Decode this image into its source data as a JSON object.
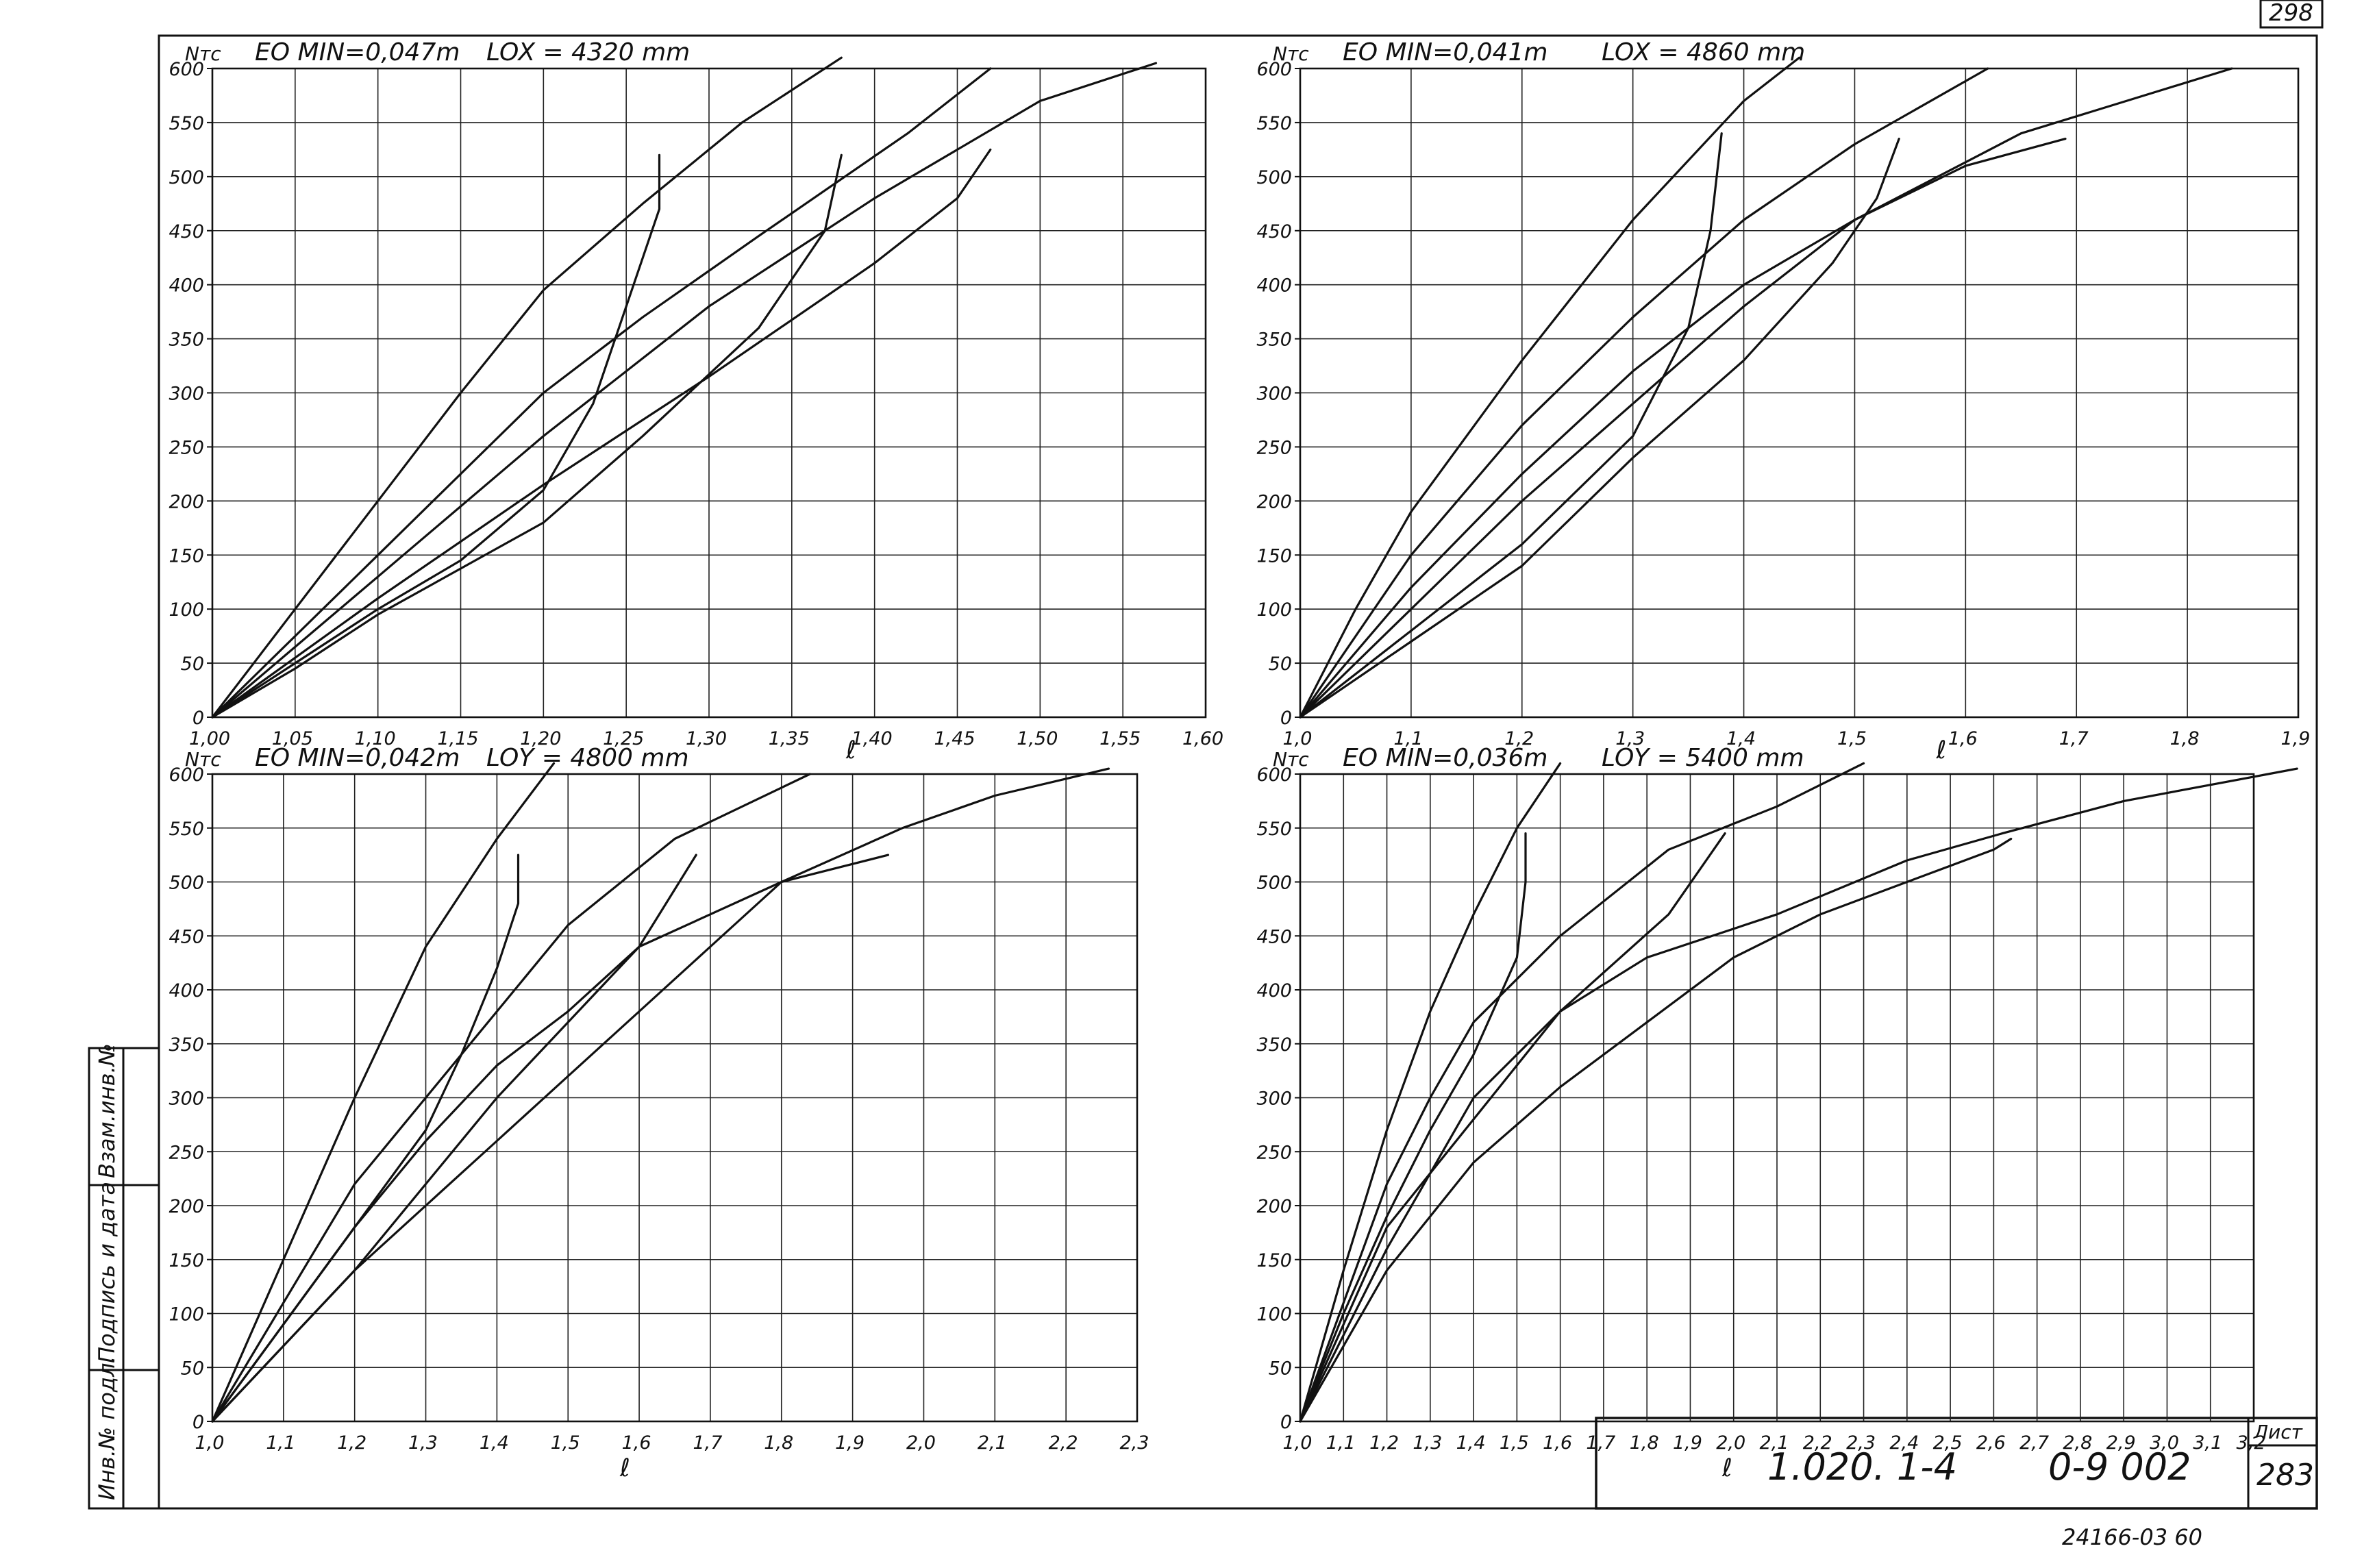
{
  "sheet": {
    "corner_number": "298",
    "stamp_label": "Лист",
    "sheet_no": "283",
    "doc_code_left": "1.020. 1-4",
    "doc_code_right": "0-9 002",
    "under_note": "24166-03  60",
    "side_labels": [
      "Инв.№ подл.",
      "Подпись и дата",
      "Взам.инв.№"
    ]
  },
  "chart_data": [
    {
      "type": "line",
      "ylabel": "Nтс",
      "xlabel": "ℓ",
      "eo_label": "EO MIN=0,047m",
      "l_label": "LOX = 4320 mm",
      "xlim": [
        1.0,
        1.6
      ],
      "ylim": [
        0,
        600
      ],
      "x_ticks": [
        "1,00",
        "1,05",
        "1,10",
        "1,15",
        "1,20",
        "1,25",
        "1,30",
        "1,35",
        "1,40",
        "1,45",
        "1,50",
        "1,55",
        "1,60"
      ],
      "y_ticks": [
        "0",
        "50",
        "100",
        "150",
        "200",
        "250",
        "300",
        "350",
        "400",
        "450",
        "500",
        "550",
        "600"
      ],
      "series": [
        {
          "points": [
            [
              1.0,
              0
            ],
            [
              1.05,
              100
            ],
            [
              1.1,
              200
            ],
            [
              1.15,
              300
            ],
            [
              1.2,
              395
            ],
            [
              1.26,
              475
            ],
            [
              1.32,
              550
            ],
            [
              1.38,
              610
            ]
          ]
        },
        {
          "points": [
            [
              1.0,
              0
            ],
            [
              1.05,
              75
            ],
            [
              1.1,
              150
            ],
            [
              1.15,
              225
            ],
            [
              1.2,
              300
            ],
            [
              1.26,
              370
            ],
            [
              1.33,
              445
            ],
            [
              1.42,
              540
            ],
            [
              1.47,
              600
            ]
          ]
        },
        {
          "points": [
            [
              1.0,
              0
            ],
            [
              1.05,
              65
            ],
            [
              1.1,
              130
            ],
            [
              1.2,
              260
            ],
            [
              1.3,
              380
            ],
            [
              1.4,
              480
            ],
            [
              1.5,
              570
            ],
            [
              1.57,
              605
            ]
          ]
        },
        {
          "points": [
            [
              1.0,
              0
            ],
            [
              1.05,
              55
            ],
            [
              1.1,
              110
            ],
            [
              1.2,
              215
            ],
            [
              1.3,
              315
            ],
            [
              1.4,
              420
            ],
            [
              1.45,
              480
            ],
            [
              1.47,
              525
            ]
          ]
        },
        {
          "points": [
            [
              1.0,
              0
            ],
            [
              1.05,
              50
            ],
            [
              1.1,
              100
            ],
            [
              1.15,
              145
            ],
            [
              1.2,
              210
            ],
            [
              1.23,
              290
            ],
            [
              1.25,
              380
            ],
            [
              1.27,
              470
            ],
            [
              1.27,
              520
            ]
          ]
        },
        {
          "points": [
            [
              1.0,
              0
            ],
            [
              1.05,
              45
            ],
            [
              1.1,
              95
            ],
            [
              1.2,
              180
            ],
            [
              1.26,
              260
            ],
            [
              1.33,
              360
            ],
            [
              1.37,
              450
            ],
            [
              1.38,
              520
            ]
          ]
        }
      ]
    },
    {
      "type": "line",
      "ylabel": "Nтс",
      "xlabel": "ℓ",
      "eo_label": "EO MIN=0,041m",
      "l_label": "LOX = 4860 mm",
      "xlim": [
        1.0,
        1.9
      ],
      "ylim": [
        0,
        600
      ],
      "x_ticks": [
        "1,0",
        "1,1",
        "1,2",
        "1,3",
        "1,4",
        "1,5",
        "1,6",
        "1,7",
        "1,8",
        "1,9"
      ],
      "y_ticks": [
        "0",
        "50",
        "100",
        "150",
        "200",
        "250",
        "300",
        "350",
        "400",
        "450",
        "500",
        "550",
        "600"
      ],
      "series": [
        {
          "points": [
            [
              1.0,
              0
            ],
            [
              1.05,
              100
            ],
            [
              1.1,
              190
            ],
            [
              1.2,
              330
            ],
            [
              1.3,
              460
            ],
            [
              1.4,
              570
            ],
            [
              1.45,
              610
            ]
          ]
        },
        {
          "points": [
            [
              1.0,
              0
            ],
            [
              1.1,
              150
            ],
            [
              1.2,
              270
            ],
            [
              1.3,
              370
            ],
            [
              1.4,
              460
            ],
            [
              1.5,
              530
            ],
            [
              1.62,
              600
            ]
          ]
        },
        {
          "points": [
            [
              1.0,
              0
            ],
            [
              1.1,
              120
            ],
            [
              1.2,
              225
            ],
            [
              1.3,
              320
            ],
            [
              1.4,
              400
            ],
            [
              1.5,
              460
            ],
            [
              1.65,
              540
            ],
            [
              1.84,
              600
            ]
          ]
        },
        {
          "points": [
            [
              1.0,
              0
            ],
            [
              1.1,
              100
            ],
            [
              1.2,
              200
            ],
            [
              1.3,
              290
            ],
            [
              1.4,
              380
            ],
            [
              1.5,
              460
            ],
            [
              1.6,
              510
            ],
            [
              1.69,
              535
            ]
          ]
        },
        {
          "points": [
            [
              1.0,
              0
            ],
            [
              1.1,
              80
            ],
            [
              1.2,
              160
            ],
            [
              1.3,
              260
            ],
            [
              1.35,
              360
            ],
            [
              1.37,
              450
            ],
            [
              1.38,
              540
            ]
          ]
        },
        {
          "points": [
            [
              1.0,
              0
            ],
            [
              1.1,
              70
            ],
            [
              1.2,
              140
            ],
            [
              1.3,
              240
            ],
            [
              1.4,
              330
            ],
            [
              1.48,
              420
            ],
            [
              1.52,
              480
            ],
            [
              1.54,
              535
            ]
          ]
        }
      ]
    },
    {
      "type": "line",
      "ylabel": "Nтс",
      "xlabel": "ℓ",
      "eo_label": "EO MIN=0,042m",
      "l_label": "LOY = 4800 mm",
      "xlim": [
        1.0,
        2.3
      ],
      "ylim": [
        0,
        600
      ],
      "x_ticks": [
        "1,0",
        "1,1",
        "1,2",
        "1,3",
        "1,4",
        "1,5",
        "1,6",
        "1,7",
        "1,8",
        "1,9",
        "2,0",
        "2,1",
        "2,2",
        "2,3"
      ],
      "y_ticks": [
        "0",
        "50",
        "100",
        "150",
        "200",
        "250",
        "300",
        "350",
        "400",
        "450",
        "500",
        "550",
        "600"
      ],
      "series": [
        {
          "points": [
            [
              1.0,
              0
            ],
            [
              1.1,
              150
            ],
            [
              1.2,
              300
            ],
            [
              1.3,
              440
            ],
            [
              1.4,
              540
            ],
            [
              1.48,
              610
            ]
          ]
        },
        {
          "points": [
            [
              1.0,
              0
            ],
            [
              1.1,
              110
            ],
            [
              1.2,
              220
            ],
            [
              1.3,
              300
            ],
            [
              1.4,
              380
            ],
            [
              1.5,
              460
            ],
            [
              1.65,
              540
            ],
            [
              1.84,
              600
            ]
          ]
        },
        {
          "points": [
            [
              1.0,
              0
            ],
            [
              1.1,
              90
            ],
            [
              1.2,
              180
            ],
            [
              1.3,
              260
            ],
            [
              1.4,
              330
            ],
            [
              1.5,
              380
            ],
            [
              1.6,
              440
            ],
            [
              1.8,
              500
            ],
            [
              1.97,
              550
            ],
            [
              2.1,
              580
            ],
            [
              2.26,
              605
            ]
          ]
        },
        {
          "points": [
            [
              1.0,
              0
            ],
            [
              1.1,
              70
            ],
            [
              1.2,
              140
            ],
            [
              1.3,
              200
            ],
            [
              1.4,
              260
            ],
            [
              1.5,
              320
            ],
            [
              1.6,
              380
            ],
            [
              1.7,
              440
            ],
            [
              1.8,
              500
            ],
            [
              1.95,
              525
            ]
          ]
        },
        {
          "points": [
            [
              1.0,
              0
            ],
            [
              1.1,
              90
            ],
            [
              1.2,
              180
            ],
            [
              1.3,
              270
            ],
            [
              1.35,
              340
            ],
            [
              1.4,
              420
            ],
            [
              1.43,
              480
            ],
            [
              1.43,
              525
            ]
          ]
        },
        {
          "points": [
            [
              1.0,
              0
            ],
            [
              1.1,
              70
            ],
            [
              1.2,
              140
            ],
            [
              1.3,
              220
            ],
            [
              1.4,
              300
            ],
            [
              1.5,
              370
            ],
            [
              1.6,
              440
            ],
            [
              1.68,
              525
            ]
          ]
        }
      ]
    },
    {
      "type": "line",
      "ylabel": "Nтс",
      "xlabel": "ℓ",
      "eo_label": "EO MIN=0,036m",
      "l_label": "LOY = 5400 mm",
      "xlim": [
        1.0,
        3.2
      ],
      "ylim": [
        0,
        600
      ],
      "x_ticks": [
        "1,0",
        "1,1",
        "1,2",
        "1,3",
        "1,4",
        "1,5",
        "1,6",
        "1,7",
        "1,8",
        "1,9",
        "2,0",
        "2,1",
        "2,2",
        "2,3",
        "2,4",
        "2,5",
        "2,6",
        "2,7",
        "2,8",
        "2,9",
        "3,0",
        "3,1",
        "3,2"
      ],
      "y_ticks": [
        "0",
        "50",
        "100",
        "150",
        "200",
        "250",
        "300",
        "350",
        "400",
        "450",
        "500",
        "550",
        "600"
      ],
      "series": [
        {
          "points": [
            [
              1.0,
              0
            ],
            [
              1.1,
              140
            ],
            [
              1.2,
              270
            ],
            [
              1.3,
              380
            ],
            [
              1.4,
              470
            ],
            [
              1.5,
              550
            ],
            [
              1.6,
              610
            ]
          ]
        },
        {
          "points": [
            [
              1.0,
              0
            ],
            [
              1.1,
              110
            ],
            [
              1.2,
              220
            ],
            [
              1.3,
              300
            ],
            [
              1.4,
              370
            ],
            [
              1.6,
              450
            ],
            [
              1.85,
              530
            ],
            [
              2.1,
              570
            ],
            [
              2.3,
              610
            ]
          ]
        },
        {
          "points": [
            [
              1.0,
              0
            ],
            [
              1.1,
              90
            ],
            [
              1.2,
              180
            ],
            [
              1.4,
              280
            ],
            [
              1.6,
              380
            ],
            [
              1.8,
              430
            ],
            [
              2.1,
              470
            ],
            [
              2.4,
              520
            ],
            [
              2.62,
              545
            ],
            [
              2.9,
              575
            ],
            [
              3.3,
              605
            ]
          ]
        },
        {
          "points": [
            [
              1.0,
              0
            ],
            [
              1.1,
              70
            ],
            [
              1.2,
              140
            ],
            [
              1.4,
              240
            ],
            [
              1.6,
              310
            ],
            [
              1.8,
              370
            ],
            [
              2.0,
              430
            ],
            [
              2.2,
              470
            ],
            [
              2.4,
              500
            ],
            [
              2.6,
              530
            ],
            [
              2.64,
              540
            ]
          ]
        },
        {
          "points": [
            [
              1.0,
              0
            ],
            [
              1.1,
              100
            ],
            [
              1.2,
              190
            ],
            [
              1.3,
              270
            ],
            [
              1.4,
              340
            ],
            [
              1.5,
              430
            ],
            [
              1.52,
              500
            ],
            [
              1.52,
              545
            ]
          ]
        },
        {
          "points": [
            [
              1.0,
              0
            ],
            [
              1.1,
              80
            ],
            [
              1.2,
              160
            ],
            [
              1.3,
              230
            ],
            [
              1.4,
              300
            ],
            [
              1.6,
              380
            ],
            [
              1.85,
              470
            ],
            [
              1.98,
              545
            ]
          ]
        }
      ]
    }
  ]
}
